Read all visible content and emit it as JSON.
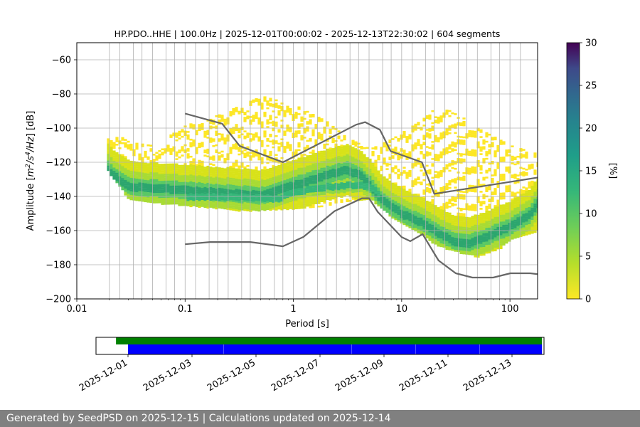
{
  "chart_data": [
    {
      "type": "heatmap",
      "title": "HP.PDO..HHE | 100.0Hz | 2025-12-01T00:00:02 - 2025-12-13T22:30:02 | 604 segments",
      "xlabel": "Period [s]",
      "ylabel_main": "Amplitude [",
      "ylabel_rest": "] [dB]",
      "ylabel_units": {
        "m": "m",
        "exp2": "2",
        "s": "/s",
        "exp4": "4",
        "hz": "/Hz"
      },
      "x_scale": "log",
      "xlim": [
        0.01,
        180
      ],
      "ylim": [
        -200,
        -50
      ],
      "x_ticks": [
        {
          "v": 0.01,
          "label": "0.01"
        },
        {
          "v": 0.1,
          "label": "0.1"
        },
        {
          "v": 1,
          "label": "1"
        },
        {
          "v": 10,
          "label": "10"
        },
        {
          "v": 100,
          "label": "100"
        }
      ],
      "y_ticks": [
        {
          "v": -60,
          "label": "−60"
        },
        {
          "v": -80,
          "label": "−80"
        },
        {
          "v": -100,
          "label": "−100"
        },
        {
          "v": -120,
          "label": "−120"
        },
        {
          "v": -140,
          "label": "−140"
        },
        {
          "v": -160,
          "label": "−160"
        },
        {
          "v": -180,
          "label": "−180"
        },
        {
          "v": -200,
          "label": "−200"
        }
      ],
      "grid_periods": [
        0.02,
        0.025,
        0.0333,
        0.04,
        0.05,
        0.0667,
        0.08,
        0.1,
        0.125,
        0.1667,
        0.2,
        0.25,
        0.333,
        0.4,
        0.5,
        0.667,
        0.8,
        1,
        1.25,
        1.667,
        2,
        2.5,
        3.333,
        4,
        5,
        6.667,
        8,
        10,
        12.5,
        16.67,
        20,
        25,
        33.3,
        40,
        50,
        66.7,
        80,
        100,
        125
      ],
      "grid_levels": [
        -60,
        -80,
        -100,
        -120,
        -140,
        -160,
        -180
      ],
      "grid": true,
      "colorbar": {
        "label": "[%]",
        "min": 0,
        "max": 30,
        "ticks": [
          0,
          5,
          10,
          15,
          20,
          25,
          30
        ],
        "colormap": "viridis_r"
      },
      "noise_models": [
        {
          "name": "NHNM",
          "color": "#666666",
          "points": [
            [
              0.1,
              -91.5
            ],
            [
              0.22,
              -97.4
            ],
            [
              0.32,
              -110.5
            ],
            [
              0.8,
              -120
            ],
            [
              3.8,
              -98
            ],
            [
              4.6,
              -96.5
            ],
            [
              6.3,
              -101
            ],
            [
              7.9,
              -113.5
            ],
            [
              15.4,
              -120
            ],
            [
              20,
              -138.5
            ],
            [
              354.8,
              -126
            ]
          ]
        },
        {
          "name": "NLNM",
          "color": "#666666",
          "points": [
            [
              0.1,
              -168
            ],
            [
              0.17,
              -166.7
            ],
            [
              0.4,
              -166.7
            ],
            [
              0.8,
              -169.2
            ],
            [
              1.24,
              -163.7
            ],
            [
              2.4,
              -148.6
            ],
            [
              4.3,
              -141.1
            ],
            [
              5,
              -141.1
            ],
            [
              6,
              -149
            ],
            [
              10,
              -163.8
            ],
            [
              12,
              -166.2
            ],
            [
              15.6,
              -162.1
            ],
            [
              21.9,
              -177.5
            ],
            [
              31.6,
              -185
            ],
            [
              45,
              -187.5
            ],
            [
              70,
              -187.5
            ],
            [
              101,
              -185
            ],
            [
              154,
              -185
            ],
            [
              328,
              -187.5
            ]
          ]
        }
      ],
      "psd_density": {
        "dominant_band": [
          [
            0.019,
            -124
          ],
          [
            0.022,
            -128
          ],
          [
            0.03,
            -134
          ],
          [
            0.06,
            -135
          ],
          [
            0.1,
            -136
          ],
          [
            0.3,
            -138
          ],
          [
            0.5,
            -139
          ],
          [
            1,
            -133
          ],
          [
            2,
            -127
          ],
          [
            3,
            -124
          ],
          [
            4,
            -127
          ],
          [
            5,
            -133
          ],
          [
            6,
            -140
          ],
          [
            8,
            -146
          ],
          [
            10,
            -150
          ],
          [
            15,
            -155
          ],
          [
            20,
            -160
          ],
          [
            30,
            -166
          ],
          [
            40,
            -167
          ],
          [
            60,
            -163
          ],
          [
            100,
            -157
          ],
          [
            150,
            -150
          ],
          [
            180,
            -143
          ]
        ],
        "secondary_band": [
          [
            0.1,
            -140
          ],
          [
            0.3,
            -140
          ],
          [
            0.7,
            -141
          ],
          [
            1,
            -137
          ],
          [
            2,
            -134
          ],
          [
            3,
            -133
          ],
          [
            4,
            -133
          ],
          [
            5,
            -134
          ],
          [
            6,
            -138
          ]
        ],
        "upper_envelope": [
          [
            0.019,
            -100
          ],
          [
            0.03,
            -108
          ],
          [
            0.05,
            -110
          ],
          [
            0.1,
            -98
          ],
          [
            0.2,
            -92
          ],
          [
            0.5,
            -81
          ],
          [
            1,
            -86
          ],
          [
            2,
            -96
          ],
          [
            3,
            -105
          ],
          [
            5,
            -112
          ],
          [
            8,
            -106
          ],
          [
            15,
            -95
          ],
          [
            20,
            -88
          ],
          [
            30,
            -90
          ],
          [
            50,
            -100
          ],
          [
            100,
            -110
          ],
          [
            180,
            -115
          ]
        ],
        "lower_envelope": [
          [
            0.019,
            -125
          ],
          [
            0.03,
            -142
          ],
          [
            0.06,
            -144
          ],
          [
            0.1,
            -145
          ],
          [
            0.3,
            -148
          ],
          [
            0.5,
            -148
          ],
          [
            1,
            -147
          ],
          [
            2,
            -145
          ],
          [
            3,
            -143
          ],
          [
            5,
            -141
          ],
          [
            8,
            -152
          ],
          [
            10,
            -156
          ],
          [
            15,
            -162
          ],
          [
            20,
            -168
          ],
          [
            30,
            -172
          ],
          [
            50,
            -175
          ],
          [
            80,
            -170
          ],
          [
            100,
            -165
          ],
          [
            180,
            -160
          ]
        ]
      },
      "data_availability": {
        "x_ticks": [
          "2025-12-01",
          "2025-12-03",
          "2025-12-05",
          "2025-12-07",
          "2025-12-09",
          "2025-12-11",
          "2025-12-13"
        ],
        "axis_start": "2025-11-30",
        "axis_end": "2025-12-14",
        "green_span": [
          "2025-11-30T15:00",
          "2025-12-13T22:30"
        ],
        "blue_segments": [
          [
            "2025-12-01T00:00",
            "2025-12-03T23:50"
          ],
          [
            "2025-12-04T00:00",
            "2025-12-07T23:50"
          ],
          [
            "2025-12-08T00:00",
            "2025-12-09T23:50"
          ],
          [
            "2025-12-10T00:00",
            "2025-12-11T23:50"
          ],
          [
            "2025-12-12T00:00",
            "2025-12-13T22:30"
          ]
        ],
        "colors": {
          "green": "#008000",
          "blue": "#0000ff"
        }
      }
    }
  ],
  "footer": {
    "text": "Generated by SeedPSD on 2025-12-15 | Calculations updated on 2025-12-14"
  }
}
